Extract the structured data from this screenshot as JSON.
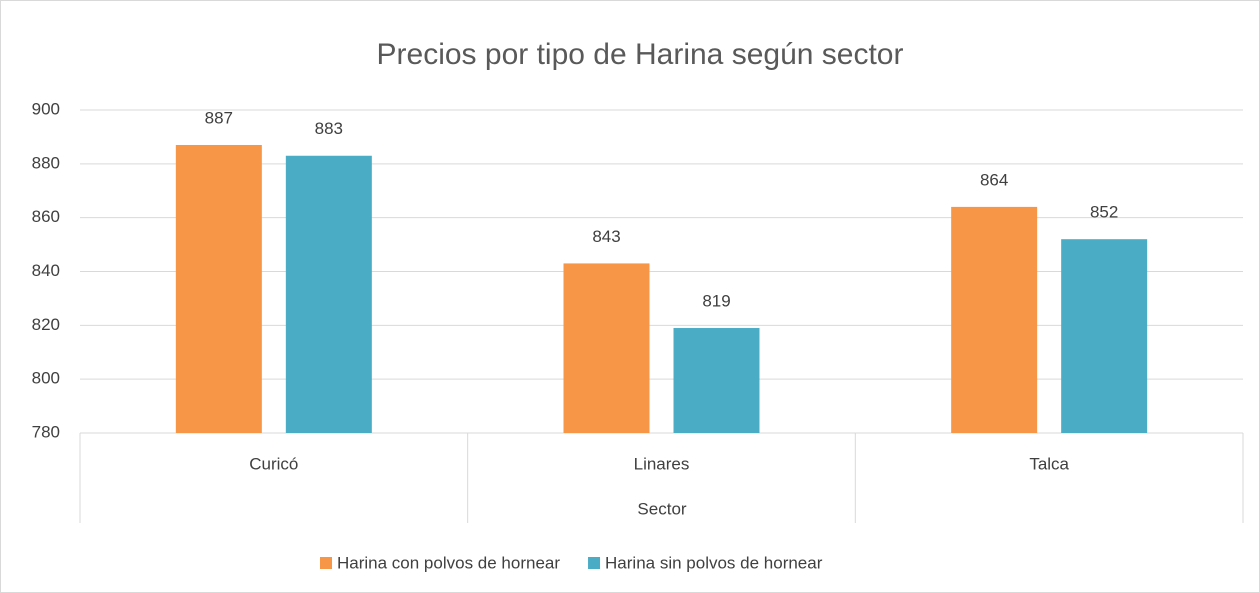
{
  "chart_data": {
    "type": "bar",
    "title": "Precios por tipo de Harina según sector",
    "x_label": "Sector",
    "categories": [
      "Curicó",
      "Linares",
      "Talca"
    ],
    "series": [
      {
        "name": "Harina con polvos de hornear",
        "color": "#f79646",
        "values": [
          887,
          843,
          864
        ]
      },
      {
        "name": "Harina sin polvos de hornear",
        "color": "#4bacc6",
        "values": [
          883,
          819,
          852
        ]
      }
    ],
    "ylim": [
      780,
      900
    ],
    "yticks": [
      780,
      800,
      820,
      840,
      860,
      880,
      900
    ],
    "grid": true,
    "legend": "bottom"
  }
}
